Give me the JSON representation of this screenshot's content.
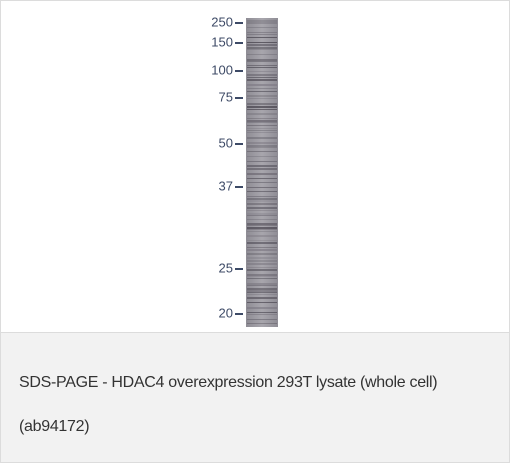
{
  "figure": {
    "markers": [
      "250",
      "150",
      "100",
      "75",
      "50",
      "37",
      "25",
      "20"
    ],
    "caption": "SDS-PAGE - HDAC4 overexpression 293T lysate (whole cell) (ab94172)"
  }
}
